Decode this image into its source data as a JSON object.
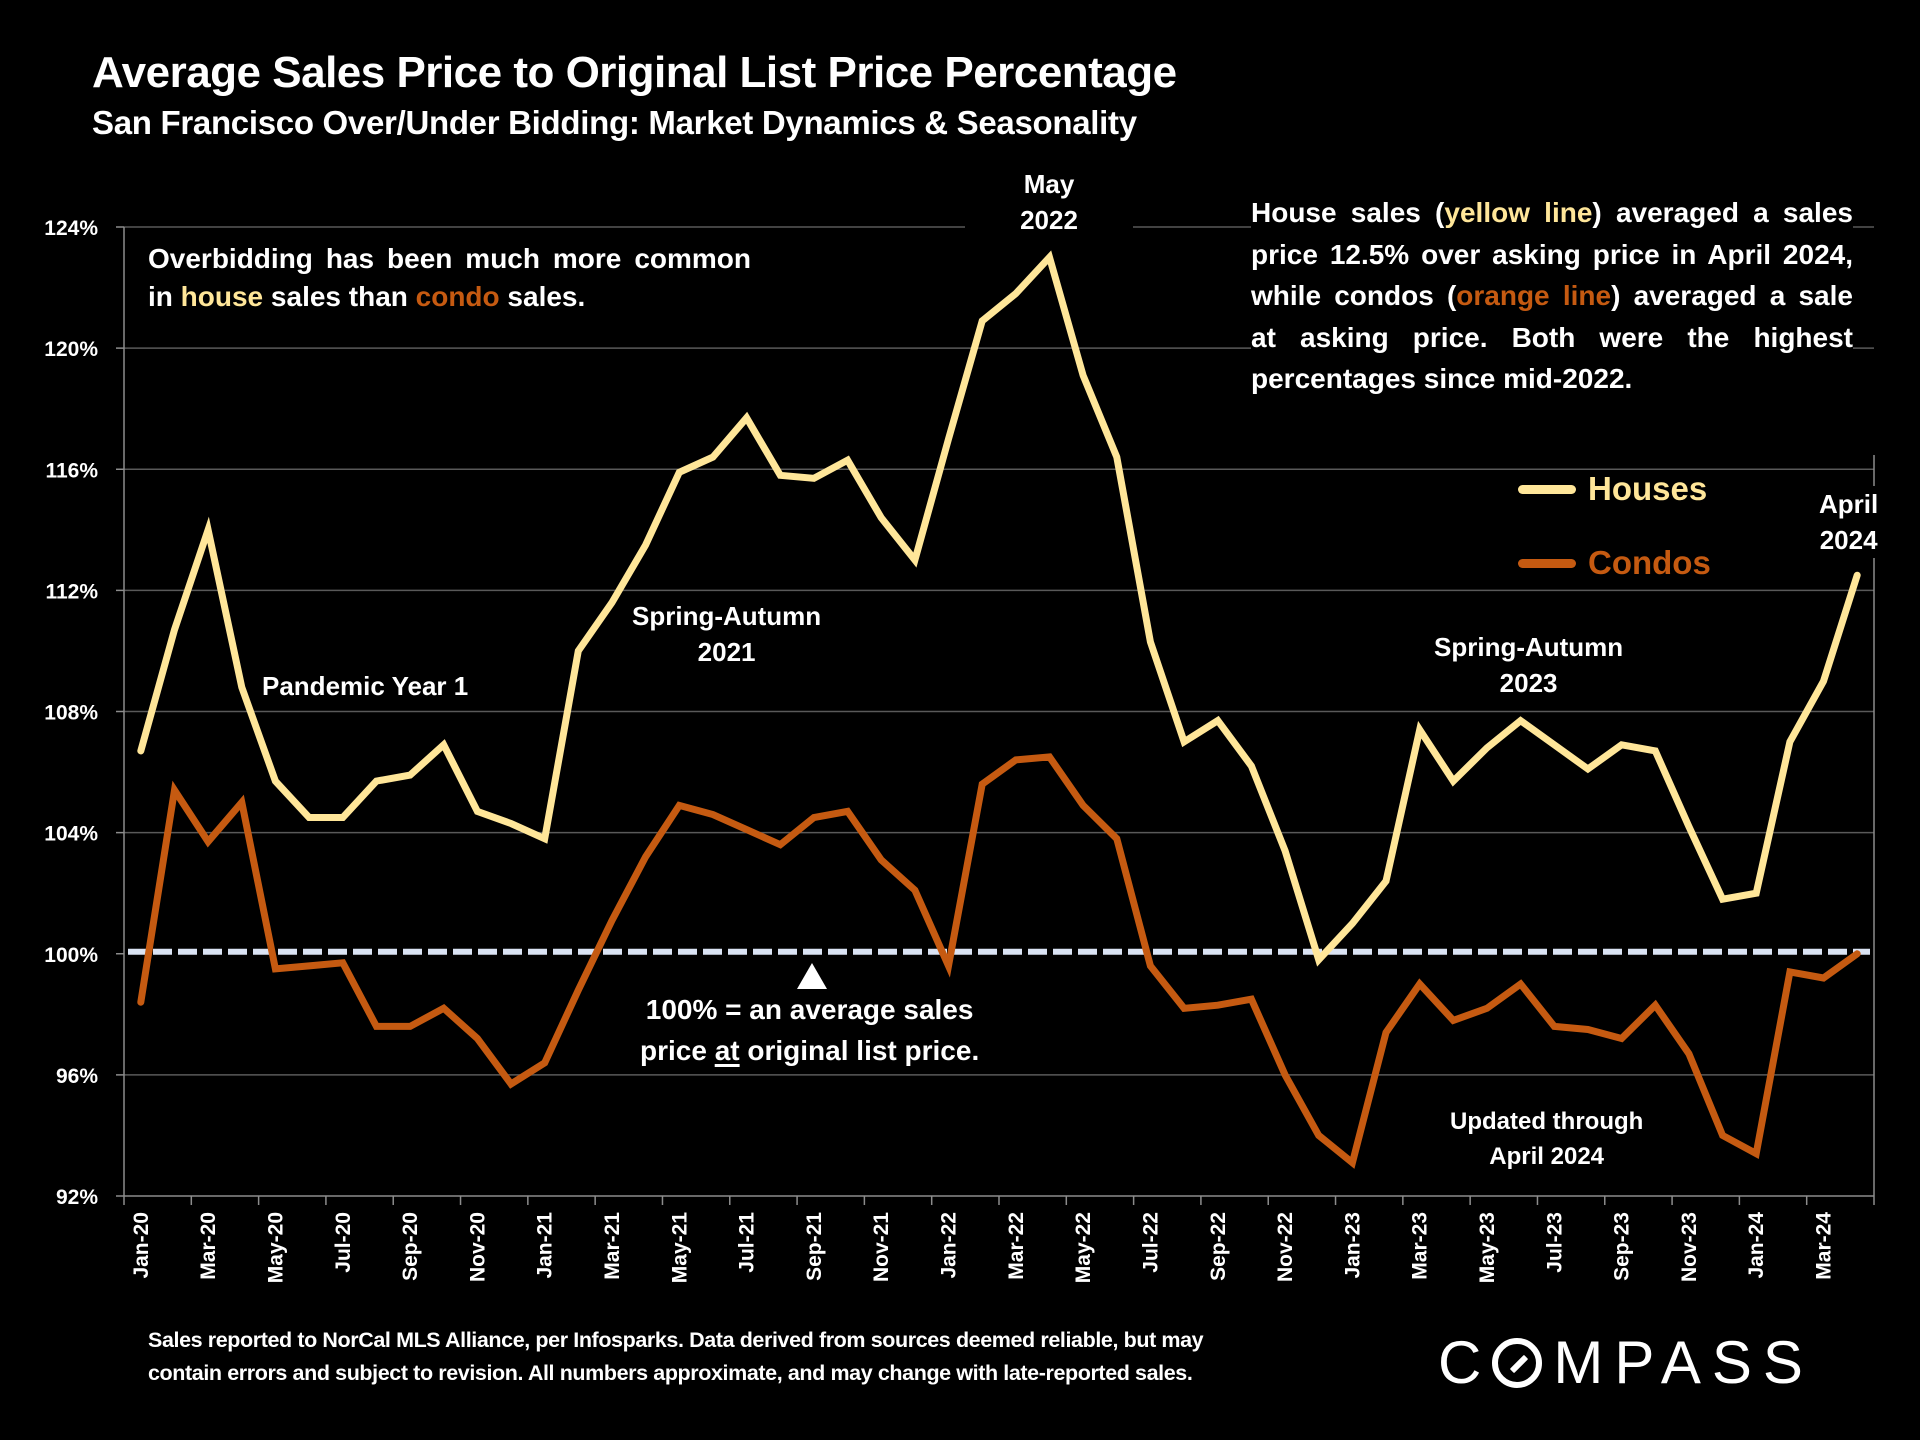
{
  "header": {
    "title": "Average Sales Price to Original List Price Percentage",
    "subtitle": "San Francisco Over/Under Bidding: Market Dynamics & Seasonality"
  },
  "colors": {
    "houses": "#FFE699",
    "condos": "#C55A11",
    "reference_line": "#DAE3F3",
    "background": "#000000",
    "gridline": "#595959",
    "text": "#FFFFFF"
  },
  "annotations": {
    "left_box": {
      "part1": "Overbidding has been much more common in ",
      "house_word": "house",
      "part2": " sales than ",
      "condo_word": "condo",
      "part3": " sales."
    },
    "right_box": {
      "part1": "House sales (",
      "house_word": "yellow line",
      "part2": ") averaged a sales price 12.5% over asking price in April 2024, while condos (",
      "condo_word": "orange line",
      "part3": ") averaged a sale at asking price. Both were the highest percentages since mid-2022."
    },
    "pandemic": "Pandemic Year 1",
    "spring_2021_line1": "Spring-Autumn",
    "spring_2021_line2": "2021",
    "may_2022_line1": "May",
    "may_2022_line2": "2022",
    "spring_2023_line1": "Spring-Autumn",
    "spring_2023_line2": "2023",
    "april_2024_line1": "April",
    "april_2024_line2": "2024",
    "updated_line1": "Updated through",
    "updated_line2": "April 2024",
    "reference_line1": "100% = an average sales",
    "reference_line2_pre": "price ",
    "reference_line2_underlined": "at",
    "reference_line2_post": " original list price."
  },
  "footer": {
    "line1": "Sales reported to NorCal MLS Alliance, per Infosparks. Data derived from sources deemed reliable, but may",
    "line2": "contain errors and subject to revision. All numbers approximate, and may change with late-reported sales."
  },
  "logo": {
    "text_before": "C",
    "text_after": "MPASS"
  },
  "chart_data": {
    "type": "line",
    "title": "Average Sales Price to Original List Price Percentage",
    "subtitle": "San Francisco Over/Under Bidding: Market Dynamics & Seasonality",
    "xlabel": "",
    "ylabel": "",
    "ylim": [
      92,
      124
    ],
    "yticks": [
      92,
      96,
      100,
      104,
      108,
      112,
      116,
      120,
      124
    ],
    "ytick_labels": [
      "92%",
      "96%",
      "100%",
      "104%",
      "108%",
      "112%",
      "116%",
      "120%",
      "124%"
    ],
    "grid": true,
    "legend_position": "right",
    "reference_line": {
      "value": 100,
      "style": "dashed"
    },
    "x": [
      "Jan-20",
      "Feb-20",
      "Mar-20",
      "Apr-20",
      "May-20",
      "Jun-20",
      "Jul-20",
      "Aug-20",
      "Sep-20",
      "Oct-20",
      "Nov-20",
      "Dec-20",
      "Jan-21",
      "Feb-21",
      "Mar-21",
      "Apr-21",
      "May-21",
      "Jun-21",
      "Jul-21",
      "Aug-21",
      "Sep-21",
      "Oct-21",
      "Nov-21",
      "Dec-21",
      "Jan-22",
      "Feb-22",
      "Mar-22",
      "Apr-22",
      "May-22",
      "Jun-22",
      "Jul-22",
      "Aug-22",
      "Sep-22",
      "Oct-22",
      "Nov-22",
      "Dec-22",
      "Jan-23",
      "Feb-23",
      "Mar-23",
      "Apr-23",
      "May-23",
      "Jun-23",
      "Jul-23",
      "Aug-23",
      "Sep-23",
      "Oct-23",
      "Nov-23",
      "Dec-23",
      "Jan-24",
      "Feb-24",
      "Mar-24",
      "Apr-24"
    ],
    "xtick_labels": [
      "Jan-20",
      "Mar-20",
      "May-20",
      "Jul-20",
      "Sep-20",
      "Nov-20",
      "Jan-21",
      "Mar-21",
      "May-21",
      "Jul-21",
      "Sep-21",
      "Nov-21",
      "Jan-22",
      "Mar-22",
      "May-22",
      "Jul-22",
      "Sep-22",
      "Nov-22",
      "Jan-23",
      "Mar-23",
      "May-23",
      "Jul-23",
      "Sep-23",
      "Nov-23",
      "Jan-24",
      "Mar-24"
    ],
    "series": [
      {
        "name": "Houses",
        "values": [
          106.7,
          110.7,
          114.0,
          108.8,
          105.7,
          104.5,
          104.5,
          105.7,
          105.9,
          106.9,
          104.7,
          104.3,
          103.8,
          110.0,
          111.6,
          113.5,
          115.9,
          116.4,
          117.7,
          115.8,
          115.7,
          116.3,
          114.4,
          113.0,
          117.0,
          120.9,
          121.8,
          123.0,
          119.1,
          116.4,
          110.3,
          107.0,
          107.7,
          106.2,
          103.4,
          99.8,
          101.0,
          102.4,
          107.4,
          105.7,
          106.8,
          107.7,
          106.9,
          106.1,
          106.9,
          106.7,
          104.2,
          101.8,
          102.0,
          107.0,
          109.0,
          112.5
        ]
      },
      {
        "name": "Condos",
        "values": [
          98.4,
          105.4,
          103.7,
          105.0,
          99.5,
          99.6,
          99.7,
          97.6,
          97.6,
          98.2,
          97.2,
          95.7,
          96.4,
          98.8,
          101.1,
          103.2,
          104.9,
          104.6,
          104.1,
          103.6,
          104.5,
          104.7,
          103.1,
          102.1,
          99.6,
          105.6,
          106.4,
          106.5,
          104.9,
          103.8,
          99.6,
          98.2,
          98.3,
          98.5,
          96.0,
          94.0,
          93.1,
          97.4,
          99.0,
          97.8,
          98.2,
          99.0,
          97.6,
          97.5,
          97.2,
          98.3,
          96.7,
          94.0,
          93.4,
          99.4,
          99.2,
          100.0
        ]
      }
    ]
  }
}
